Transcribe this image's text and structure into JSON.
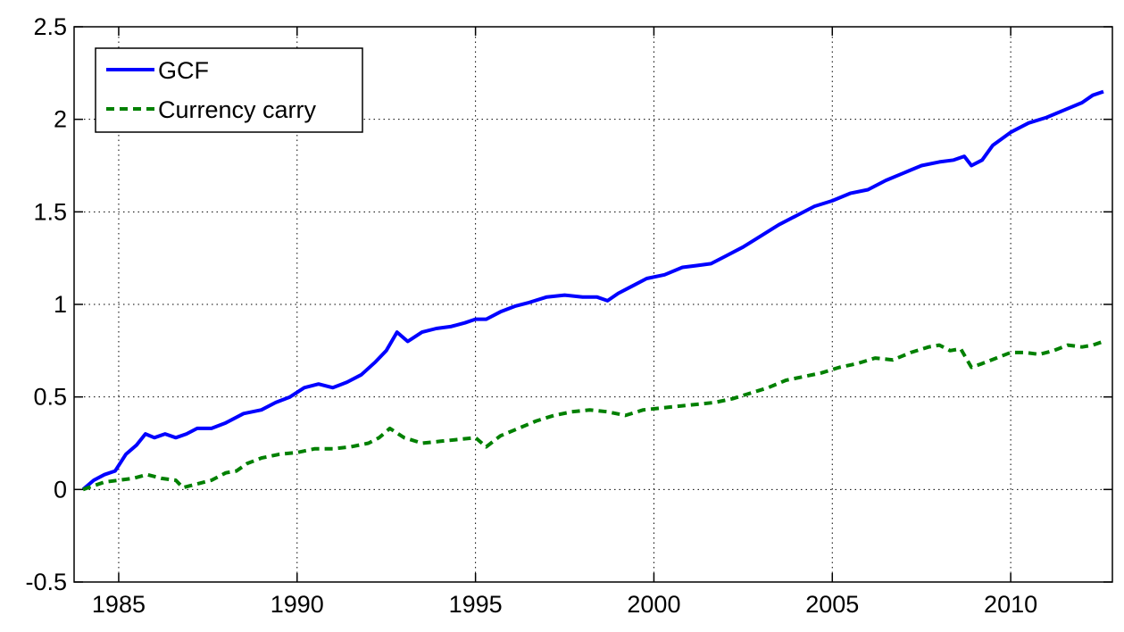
{
  "chart_data": {
    "type": "line",
    "title": "",
    "xlabel": "",
    "ylabel": "",
    "xlim": [
      1983.75,
      2012.85
    ],
    "ylim": [
      -0.5,
      2.5
    ],
    "xticks": [
      1985,
      1990,
      1995,
      2000,
      2005,
      2010
    ],
    "xtick_labels": [
      "1985",
      "1990",
      "1995",
      "2000",
      "2005",
      "2010"
    ],
    "yticks": [
      -0.5,
      0,
      0.5,
      1,
      1.5,
      2,
      2.5
    ],
    "ytick_labels": [
      "-0.5",
      "0",
      "0.5",
      "1",
      "1.5",
      "2",
      "2.5"
    ],
    "grid": true,
    "legend_position": "top-left",
    "series": [
      {
        "name": "GCF",
        "color": "#0000ff",
        "style": "solid",
        "x": [
          1984.0,
          1984.3,
          1984.6,
          1984.9,
          1985.2,
          1985.5,
          1985.75,
          1986.0,
          1986.3,
          1986.6,
          1986.9,
          1987.2,
          1987.6,
          1988.0,
          1988.5,
          1989.0,
          1989.4,
          1989.8,
          1990.2,
          1990.6,
          1991.0,
          1991.4,
          1991.8,
          1992.2,
          1992.5,
          1992.8,
          1993.1,
          1993.5,
          1993.9,
          1994.3,
          1994.7,
          1995.0,
          1995.3,
          1995.7,
          1996.1,
          1996.5,
          1997.0,
          1997.5,
          1998.0,
          1998.4,
          1998.7,
          1999.0,
          1999.4,
          1999.8,
          2000.3,
          2000.8,
          2001.2,
          2001.6,
          2002.0,
          2002.5,
          2003.0,
          2003.5,
          2004.0,
          2004.5,
          2005.0,
          2005.5,
          2006.0,
          2006.5,
          2007.0,
          2007.5,
          2008.0,
          2008.4,
          2008.7,
          2008.9,
          2009.2,
          2009.5,
          2010.0,
          2010.5,
          2011.0,
          2011.5,
          2012.0,
          2012.3,
          2012.6
        ],
        "values": [
          0.0,
          0.05,
          0.08,
          0.1,
          0.19,
          0.24,
          0.3,
          0.28,
          0.3,
          0.28,
          0.3,
          0.33,
          0.33,
          0.36,
          0.41,
          0.43,
          0.47,
          0.5,
          0.55,
          0.57,
          0.55,
          0.58,
          0.62,
          0.69,
          0.75,
          0.85,
          0.8,
          0.85,
          0.87,
          0.88,
          0.9,
          0.92,
          0.92,
          0.96,
          0.99,
          1.01,
          1.04,
          1.05,
          1.04,
          1.04,
          1.02,
          1.06,
          1.1,
          1.14,
          1.16,
          1.2,
          1.21,
          1.22,
          1.26,
          1.31,
          1.37,
          1.43,
          1.48,
          1.53,
          1.56,
          1.6,
          1.62,
          1.67,
          1.71,
          1.75,
          1.77,
          1.78,
          1.8,
          1.75,
          1.78,
          1.86,
          1.93,
          1.98,
          2.01,
          2.05,
          2.09,
          2.13,
          2.15
        ]
      },
      {
        "name": "Currency carry",
        "color": "#008000",
        "style": "dashed",
        "x": [
          1984.0,
          1984.3,
          1984.6,
          1985.0,
          1985.4,
          1985.8,
          1986.2,
          1986.6,
          1986.8,
          1987.2,
          1987.6,
          1988.0,
          1988.3,
          1988.6,
          1989.0,
          1989.5,
          1990.0,
          1990.5,
          1991.0,
          1991.5,
          1992.0,
          1992.3,
          1992.6,
          1993.0,
          1993.5,
          1994.0,
          1994.5,
          1995.0,
          1995.3,
          1995.7,
          1996.2,
          1996.7,
          1997.2,
          1997.7,
          1998.2,
          1998.7,
          1999.2,
          1999.7,
          2000.2,
          2000.7,
          2001.2,
          2001.7,
          2002.2,
          2002.7,
          2003.2,
          2003.7,
          2004.2,
          2004.7,
          2005.2,
          2005.7,
          2006.2,
          2006.7,
          2007.2,
          2007.7,
          2008.0,
          2008.3,
          2008.6,
          2008.9,
          2009.2,
          2009.6,
          2010.0,
          2010.4,
          2010.8,
          2011.2,
          2011.6,
          2012.0,
          2012.3,
          2012.6
        ],
        "values": [
          0.0,
          0.02,
          0.04,
          0.05,
          0.06,
          0.08,
          0.06,
          0.05,
          0.01,
          0.03,
          0.05,
          0.09,
          0.1,
          0.14,
          0.17,
          0.19,
          0.2,
          0.22,
          0.22,
          0.23,
          0.25,
          0.28,
          0.33,
          0.28,
          0.25,
          0.26,
          0.27,
          0.28,
          0.23,
          0.29,
          0.33,
          0.37,
          0.4,
          0.42,
          0.43,
          0.42,
          0.4,
          0.43,
          0.44,
          0.45,
          0.46,
          0.47,
          0.49,
          0.52,
          0.55,
          0.59,
          0.61,
          0.63,
          0.66,
          0.68,
          0.71,
          0.7,
          0.74,
          0.77,
          0.78,
          0.75,
          0.76,
          0.66,
          0.68,
          0.71,
          0.74,
          0.74,
          0.73,
          0.75,
          0.78,
          0.77,
          0.78,
          0.8
        ]
      }
    ]
  }
}
